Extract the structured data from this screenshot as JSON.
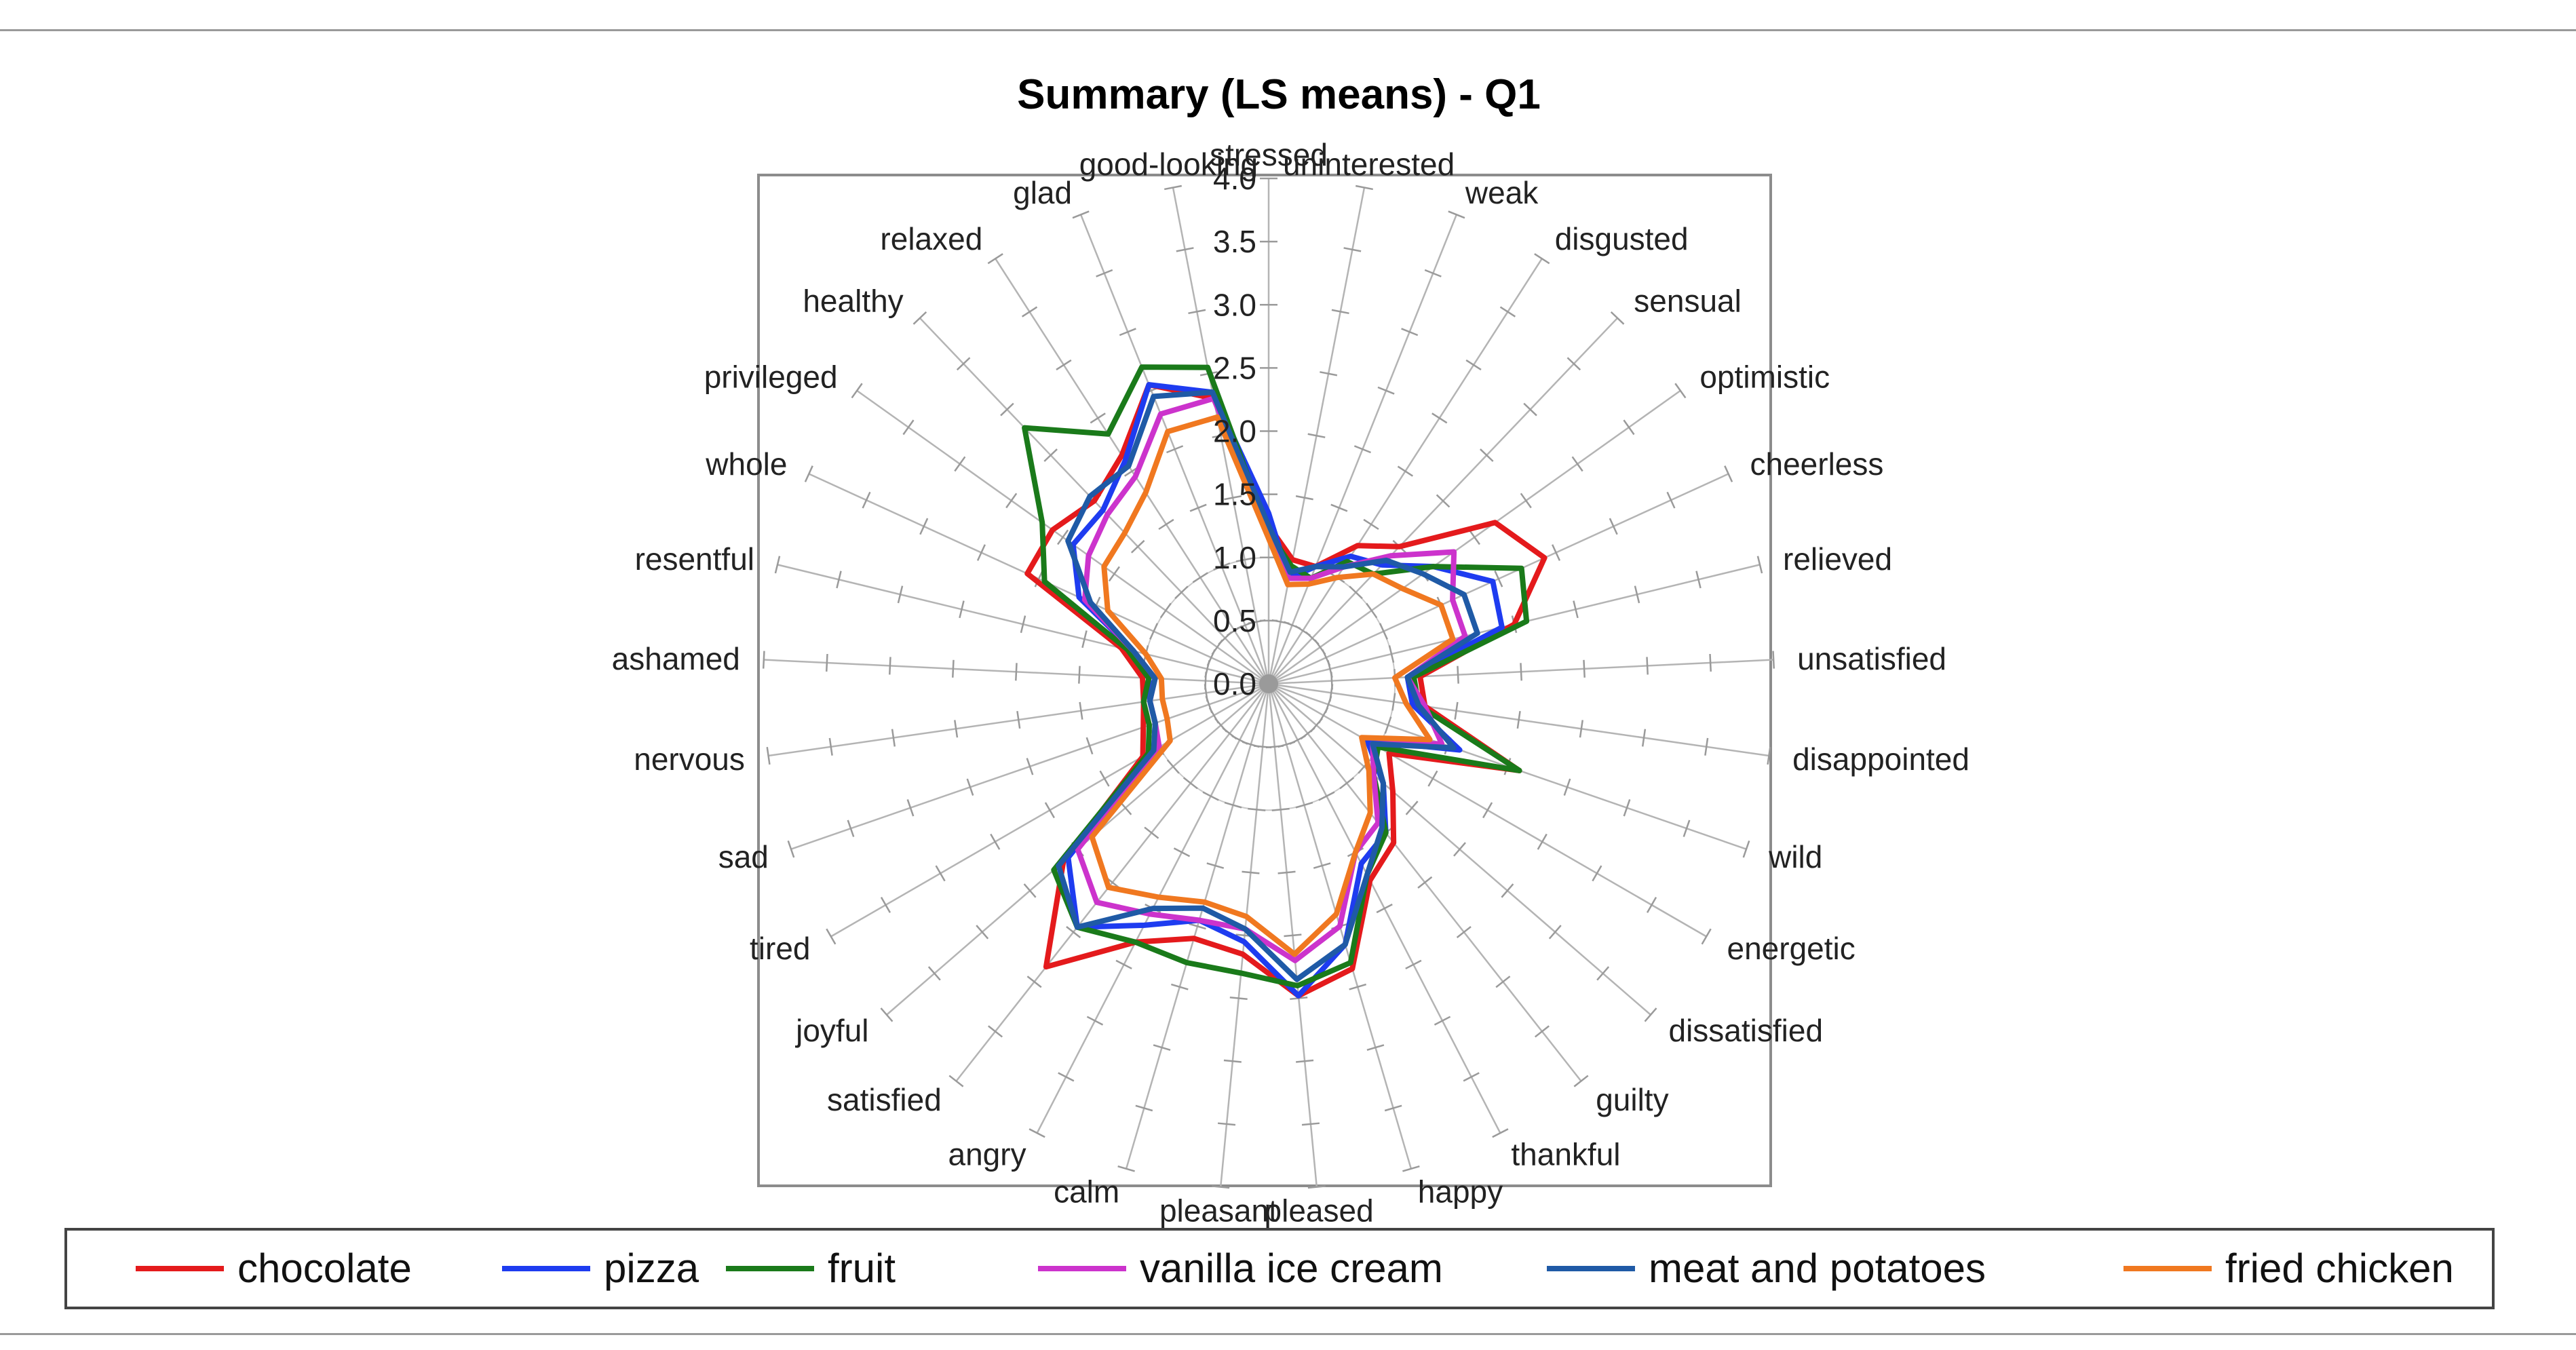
{
  "chart_data": {
    "type": "radar",
    "title": "Summary (LS means) - Q1",
    "r_ticks": [
      "0.0",
      "0.5",
      "1.0",
      "1.5",
      "2.0",
      "2.5",
      "3.0",
      "3.5",
      "4.0"
    ],
    "r_max": 4.0,
    "categories": [
      "stressed",
      "uninterested",
      "weak",
      "disgusted",
      "sensual",
      "optimistic",
      "cheerless",
      "relieved",
      "unsatisfied",
      "disappointed",
      "wild",
      "energetic",
      "dissatisfied",
      "guilty",
      "thankful",
      "happy",
      "pleased",
      "pleasant",
      "calm",
      "angry",
      "satisfied",
      "joyful",
      "tired",
      "sad",
      "nervous",
      "ashamed",
      "resentful",
      "whole",
      "privileged",
      "healthy",
      "relaxed",
      "glad",
      "good-looking"
    ],
    "legend_position": "bottom",
    "series": [
      {
        "name": "chocolate",
        "color": "#e41a1c",
        "values": [
          1.25,
          1.0,
          1.0,
          1.3,
          1.5,
          2.2,
          2.4,
          2.0,
          1.2,
          1.25,
          2.1,
          1.1,
          1.3,
          1.6,
          1.75,
          2.35,
          2.48,
          2.15,
          2.1,
          2.3,
          2.85,
          2.15,
          1.15,
          1.05,
          1.0,
          1.0,
          1.2,
          2.1,
          2.1,
          2.0,
          2.15,
          2.55,
          2.3
        ]
      },
      {
        "name": "pizza",
        "color": "#1e3cf0",
        "values": [
          1.35,
          0.85,
          1.0,
          1.2,
          1.3,
          1.6,
          1.95,
          1.9,
          1.1,
          1.15,
          1.6,
          0.9,
          1.2,
          1.5,
          1.6,
          2.15,
          2.48,
          2.05,
          1.95,
          2.15,
          2.45,
          2.1,
          1.05,
          0.95,
          0.95,
          0.95,
          1.1,
          1.65,
          1.9,
          1.9,
          2.1,
          2.55,
          2.35
        ]
      },
      {
        "name": "fruit",
        "color": "#1a7a1a",
        "values": [
          1.2,
          0.95,
          0.9,
          1.15,
          1.2,
          1.6,
          2.2,
          2.1,
          1.15,
          1.2,
          2.1,
          1.0,
          1.1,
          1.5,
          1.7,
          2.3,
          2.4,
          2.3,
          2.3,
          2.3,
          2.45,
          2.25,
          1.1,
          1.0,
          1.0,
          0.95,
          1.15,
          1.95,
          2.2,
          2.8,
          2.35,
          2.7,
          2.55
        ]
      },
      {
        "name": "vanilla ice cream",
        "color": "#cc33cc",
        "values": [
          1.2,
          0.85,
          0.9,
          1.1,
          1.4,
          1.8,
          1.6,
          1.6,
          1.1,
          1.25,
          1.45,
          0.95,
          1.1,
          1.4,
          1.5,
          2.0,
          2.2,
          1.95,
          1.95,
          2.05,
          2.2,
          2.0,
          1.0,
          0.95,
          0.95,
          0.9,
          1.1,
          1.6,
          1.75,
          1.85,
          1.95,
          2.3,
          2.3
        ]
      },
      {
        "name": "meat and potatoes",
        "color": "#1f5aa6",
        "values": [
          1.25,
          0.9,
          1.0,
          1.1,
          1.35,
          1.5,
          1.7,
          1.7,
          1.1,
          1.2,
          1.55,
          0.95,
          1.2,
          1.45,
          1.7,
          2.15,
          2.35,
          1.95,
          1.85,
          2.0,
          2.45,
          2.2,
          1.05,
          0.95,
          0.95,
          0.9,
          1.1,
          1.55,
          1.95,
          2.05,
          2.05,
          2.45,
          2.35
        ]
      },
      {
        "name": "fried chicken",
        "color": "#f07820",
        "values": [
          1.15,
          0.8,
          0.85,
          1.0,
          1.2,
          1.3,
          1.5,
          1.5,
          1.0,
          1.1,
          1.35,
          0.85,
          1.05,
          1.3,
          1.5,
          1.9,
          2.15,
          1.85,
          1.8,
          1.9,
          2.05,
          1.85,
          0.9,
          0.85,
          0.85,
          0.85,
          1.0,
          1.4,
          1.6,
          1.65,
          1.8,
          2.15,
          2.15
        ]
      }
    ]
  }
}
